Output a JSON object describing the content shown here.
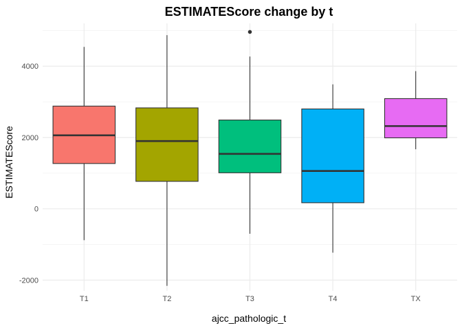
{
  "chart_data": {
    "type": "boxplot",
    "title": "ESTIMATEScore change by t",
    "xlabel": "ajcc_pathologic_t",
    "ylabel": "ESTIMATEScore",
    "categories": [
      "T1",
      "T2",
      "T3",
      "T4",
      "TX"
    ],
    "ylim": [
      -2300,
      5200
    ],
    "yticks": [
      -2000,
      0,
      2000,
      4000
    ],
    "ytick_labels": [
      "-2000",
      "0",
      "2000",
      "4000"
    ],
    "grid": true,
    "legend": "none",
    "boxes": [
      {
        "category": "T1",
        "min": -880,
        "q1": 1270,
        "median": 2060,
        "q3": 2880,
        "max": 4540,
        "outliers": [],
        "color": "#F8766D"
      },
      {
        "category": "T2",
        "min": -2160,
        "q1": 770,
        "median": 1900,
        "q3": 2830,
        "max": 4870,
        "outliers": [],
        "color": "#A3A500"
      },
      {
        "category": "T3",
        "min": -700,
        "q1": 1010,
        "median": 1540,
        "q3": 2490,
        "max": 4270,
        "outliers": [
          4960
        ],
        "color": "#00BF7D"
      },
      {
        "category": "T4",
        "min": -1230,
        "q1": 170,
        "median": 1060,
        "q3": 2800,
        "max": 3490,
        "outliers": [],
        "color": "#00B0F6"
      },
      {
        "category": "TX",
        "min": 1670,
        "q1": 1990,
        "median": 2320,
        "q3": 3090,
        "max": 3860,
        "outliers": [],
        "color": "#E76BF3"
      }
    ]
  }
}
